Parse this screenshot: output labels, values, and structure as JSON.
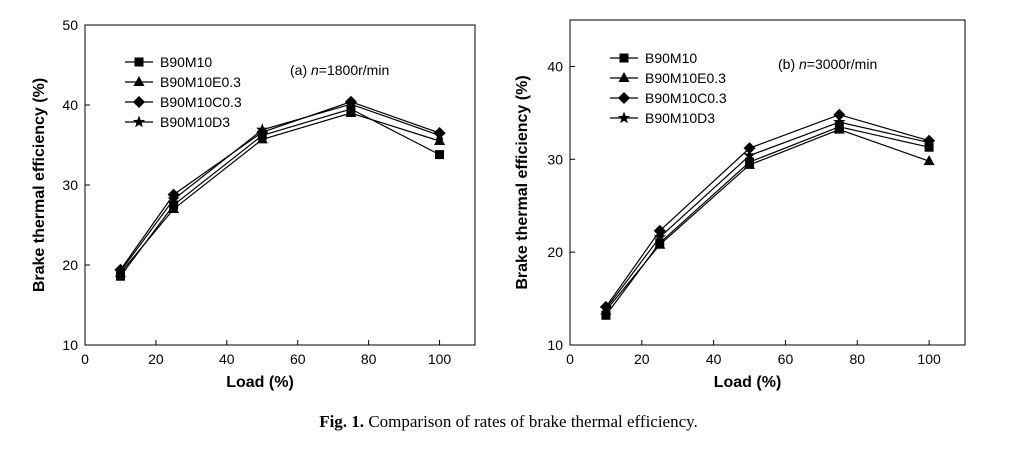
{
  "caption": {
    "label": "Fig. 1.",
    "text": "Comparison of rates of brake thermal efficiency."
  },
  "chart_data": [
    {
      "type": "line",
      "annotation": {
        "prefix": "(a) ",
        "var": "n",
        "value": "=1800r/min"
      },
      "xlabel": "Load (%)",
      "ylabel": "Brake thermal efficiency (%)",
      "xlim": [
        0,
        110
      ],
      "ylim": [
        10,
        50
      ],
      "xticks": [
        0,
        20,
        40,
        60,
        80,
        100
      ],
      "yticks": [
        10,
        20,
        30,
        40,
        50
      ],
      "legend_position": "top-left",
      "x": [
        10,
        25,
        50,
        75,
        100
      ],
      "series": [
        {
          "name": "B90M10",
          "marker": "square",
          "values": [
            18.6,
            27.5,
            36.2,
            39.5,
            33.8
          ]
        },
        {
          "name": "B90M10E0.3",
          "marker": "triangle",
          "values": [
            19.0,
            27.0,
            35.7,
            39.0,
            35.5
          ]
        },
        {
          "name": "B90M10C0.3",
          "marker": "diamond",
          "values": [
            19.4,
            28.8,
            36.6,
            40.4,
            36.5
          ]
        },
        {
          "name": "B90M10D3",
          "marker": "star",
          "values": [
            19.2,
            28.2,
            36.9,
            40.1,
            36.2
          ]
        }
      ]
    },
    {
      "type": "line",
      "annotation": {
        "prefix": "(b) ",
        "var": "n",
        "value": "=3000r/min"
      },
      "xlabel": "Load (%)",
      "ylabel": "Brake thermal efficiency (%)",
      "xlim": [
        0,
        110
      ],
      "ylim": [
        10,
        45
      ],
      "xticks": [
        0,
        20,
        40,
        60,
        80,
        100
      ],
      "yticks": [
        10,
        20,
        30,
        40
      ],
      "legend_position": "top-left",
      "x": [
        10,
        25,
        50,
        75,
        100
      ],
      "series": [
        {
          "name": "B90M10",
          "marker": "square",
          "values": [
            13.2,
            21.0,
            29.7,
            33.5,
            31.3
          ]
        },
        {
          "name": "B90M10E0.3",
          "marker": "triangle",
          "values": [
            13.7,
            20.8,
            29.4,
            33.2,
            29.8
          ]
        },
        {
          "name": "B90M10C0.3",
          "marker": "diamond",
          "values": [
            14.1,
            22.3,
            31.2,
            34.8,
            32.0
          ]
        },
        {
          "name": "B90M10D3",
          "marker": "star",
          "values": [
            13.9,
            21.6,
            30.4,
            34.0,
            31.8
          ]
        }
      ]
    }
  ]
}
